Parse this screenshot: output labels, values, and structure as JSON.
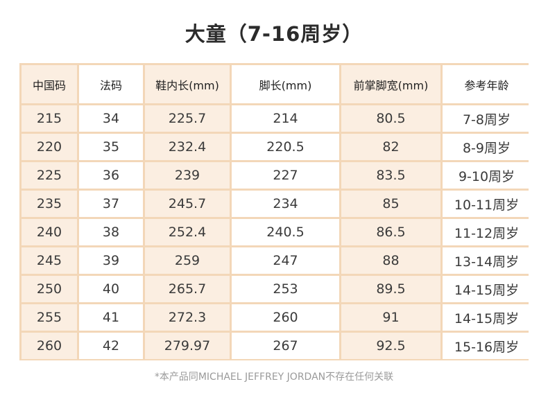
{
  "title": "大童（7-16周岁）",
  "table": {
    "headers": [
      "中国码",
      "法码",
      "鞋内长(mm)",
      "脚长(mm)",
      "前掌脚宽(mm)",
      "参考年龄"
    ],
    "rows": [
      [
        "215",
        "34",
        "225.7",
        "214",
        "80.5",
        "7-8周岁"
      ],
      [
        "220",
        "35",
        "232.4",
        "220.5",
        "82",
        "8-9周岁"
      ],
      [
        "225",
        "36",
        "239",
        "227",
        "83.5",
        "9-10周岁"
      ],
      [
        "235",
        "37",
        "245.7",
        "234",
        "85",
        "10-11周岁"
      ],
      [
        "240",
        "38",
        "252.4",
        "240.5",
        "86.5",
        "11-12周岁"
      ],
      [
        "245",
        "39",
        "259",
        "247",
        "88",
        "13-14周岁"
      ],
      [
        "250",
        "40",
        "265.7",
        "253",
        "89.5",
        "14-15周岁"
      ],
      [
        "255",
        "41",
        "272.3",
        "260",
        "91",
        "14-15周岁"
      ],
      [
        "260",
        "42",
        "279.97",
        "267",
        "92.5",
        "15-16周岁"
      ]
    ]
  },
  "footnote": "*本产品同MICHAEL JEFFREY JORDAN不存在任何关联"
}
